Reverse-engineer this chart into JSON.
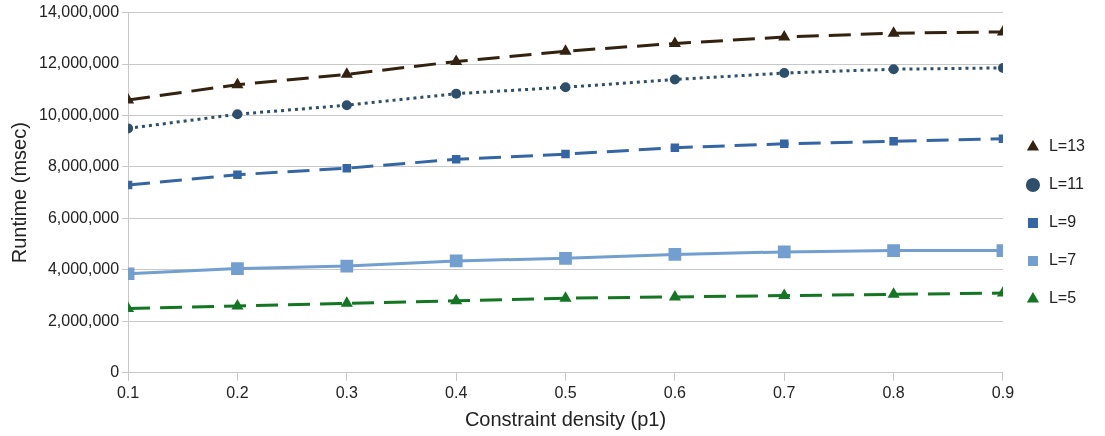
{
  "chart_data": {
    "type": "line",
    "xlabel": "Constraint density (p1)",
    "ylabel": "Runtime (msec)",
    "x": [
      0.1,
      0.2,
      0.3,
      0.4,
      0.5,
      0.6,
      0.7,
      0.8,
      0.9
    ],
    "xlim": [
      0.1,
      0.9
    ],
    "xticks": [
      0.1,
      0.2,
      0.3,
      0.4,
      0.5,
      0.6,
      0.7,
      0.8,
      0.9
    ],
    "ylim": [
      0,
      14000000
    ],
    "yticks": [
      0,
      {
        "value": 2000000,
        "label": "2,000,000"
      },
      {
        "value": 4000000,
        "label": "4,000,000"
      },
      {
        "value": 6000000,
        "label": "6,000,000"
      },
      {
        "value": 8000000,
        "label": "8,000,000"
      },
      {
        "value": 10000000,
        "label": "10,000,000"
      },
      {
        "value": 12000000,
        "label": "12,000,000"
      },
      {
        "value": 14000000,
        "label": "14,000,000"
      }
    ],
    "grid": "y",
    "legend": "right",
    "series": [
      {
        "name": "L=13",
        "color": "#32220f",
        "marker": "triangle",
        "line_style": "dashed",
        "values": [
          10600000,
          11200000,
          11600000,
          12100000,
          12500000,
          12800000,
          13050000,
          13200000,
          13250000
        ]
      },
      {
        "name": "L=11",
        "color": "#2e4f6b",
        "marker": "circle",
        "line_style": "dotted",
        "values": [
          9500000,
          10050000,
          10400000,
          10850000,
          11100000,
          11400000,
          11650000,
          11800000,
          11850000
        ]
      },
      {
        "name": "L=9",
        "color": "#3465a4",
        "marker": "square",
        "line_style": "dashed",
        "values": [
          7300000,
          7700000,
          7950000,
          8300000,
          8500000,
          8750000,
          8900000,
          9000000,
          9100000
        ]
      },
      {
        "name": "L=7",
        "color": "#729fcf",
        "marker": "square",
        "line_style": "solid",
        "values": [
          3850000,
          4050000,
          4150000,
          4350000,
          4450000,
          4600000,
          4700000,
          4750000,
          4750000
        ]
      },
      {
        "name": "L=5",
        "color": "#127622",
        "marker": "triangle",
        "line_style": "dashed",
        "values": [
          2500000,
          2600000,
          2700000,
          2800000,
          2900000,
          2950000,
          3000000,
          3050000,
          3100000
        ]
      }
    ]
  }
}
